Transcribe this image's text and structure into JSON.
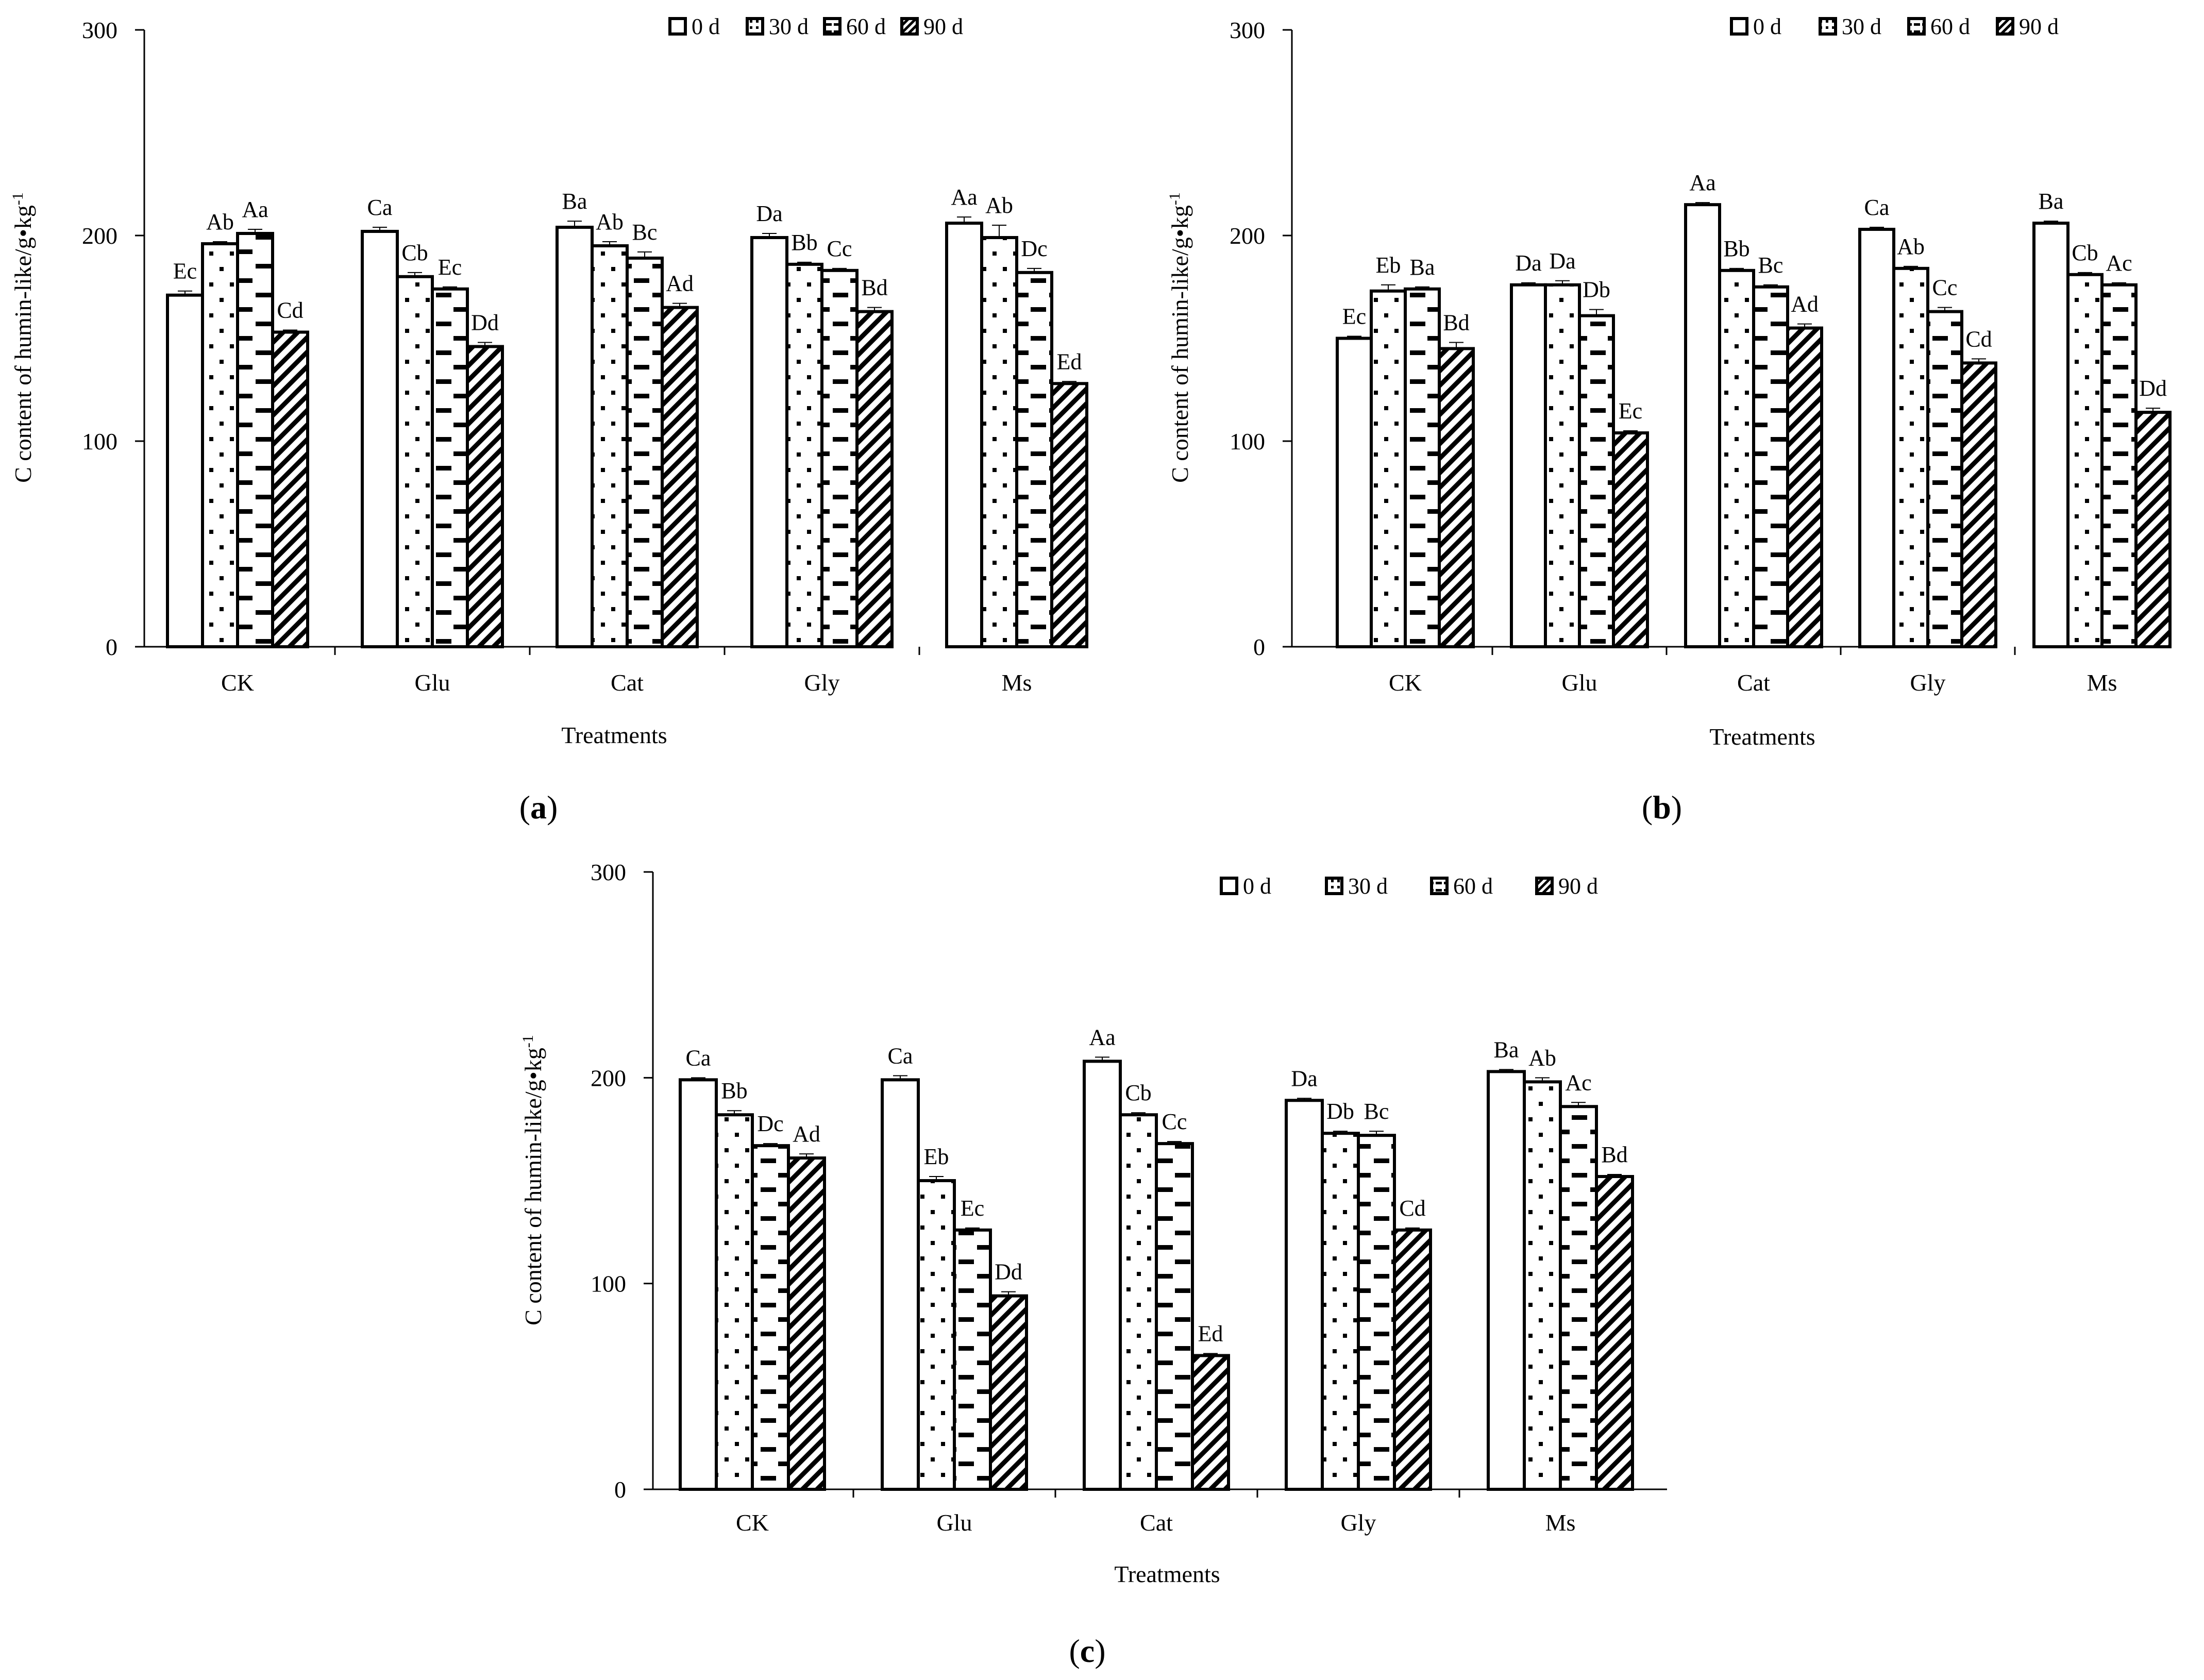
{
  "chart_data": [
    {
      "type": "bar",
      "panel_label": "a",
      "title": "",
      "xlabel": "Treatments",
      "ylabel": "C content of humin-like/g•kg",
      "ylabel_sup": "-1",
      "ylim": [
        0,
        300
      ],
      "yticks": [
        "0",
        "100",
        "200",
        "300"
      ],
      "grid": false,
      "legend_position": "top",
      "categories": [
        "CK",
        "Glu",
        "Cat",
        "Gly",
        "Ms"
      ],
      "series": [
        {
          "name": "0 d",
          "pattern": "white",
          "values": [
            171,
            202,
            204,
            199,
            206
          ],
          "errors": [
            2,
            2,
            3,
            2,
            3
          ],
          "labels": [
            "Ec",
            "Ca",
            "Ba",
            "Da",
            "Aa"
          ]
        },
        {
          "name": "30 d",
          "pattern": "dots",
          "values": [
            196,
            180,
            195,
            186,
            199
          ],
          "errors": [
            1,
            2,
            2,
            1,
            6
          ],
          "labels": [
            "Ab",
            "Cb",
            "Ab",
            "Bb",
            "Ab"
          ]
        },
        {
          "name": "60 d",
          "pattern": "dashes",
          "values": [
            201,
            174,
            189,
            183,
            182
          ],
          "errors": [
            2,
            1,
            3,
            1,
            2
          ],
          "labels": [
            "Aa",
            "Ec",
            "Bc",
            "Cc",
            "Dc"
          ]
        },
        {
          "name": "90 d",
          "pattern": "hatch",
          "values": [
            153,
            146,
            165,
            163,
            128
          ],
          "errors": [
            1,
            2,
            2,
            2,
            1
          ],
          "labels": [
            "Cd",
            "Dd",
            "Ad",
            "Bd",
            "Ed"
          ]
        }
      ]
    },
    {
      "type": "bar",
      "panel_label": "b",
      "title": "",
      "xlabel": "Treatments",
      "ylabel": "C content of humin-like/g•kg",
      "ylabel_sup": "-1",
      "ylim": [
        0,
        300
      ],
      "yticks": [
        "0",
        "100",
        "200",
        "300"
      ],
      "grid": false,
      "legend_position": "top",
      "categories": [
        "CK",
        "Glu",
        "Cat",
        "Gly",
        "Ms"
      ],
      "series": [
        {
          "name": "0 d",
          "pattern": "white",
          "values": [
            150,
            176,
            215,
            203,
            206
          ],
          "errors": [
            1,
            1,
            1,
            1,
            1
          ],
          "labels": [
            "Ec",
            "Da",
            "Aa",
            "Ca",
            "Ba"
          ]
        },
        {
          "name": "30 d",
          "pattern": "dots",
          "values": [
            173,
            176,
            183,
            184,
            181
          ],
          "errors": [
            3,
            2,
            1,
            1,
            1
          ],
          "labels": [
            "Eb",
            "Da",
            "Bb",
            "Ab",
            "Cb"
          ]
        },
        {
          "name": "60 d",
          "pattern": "dashes",
          "values": [
            174,
            161,
            175,
            163,
            176
          ],
          "errors": [
            1,
            3,
            1,
            2,
            1
          ],
          "labels": [
            "Ba",
            "Db",
            "Bc",
            "Cc",
            "Ac"
          ]
        },
        {
          "name": "90 d",
          "pattern": "hatch",
          "values": [
            145,
            104,
            155,
            138,
            114
          ],
          "errors": [
            3,
            1,
            2,
            2,
            2
          ],
          "labels": [
            "Bd",
            "Ec",
            "Ad",
            "Cd",
            "Dd"
          ]
        }
      ]
    },
    {
      "type": "bar",
      "panel_label": "c",
      "title": "",
      "xlabel": "Treatments",
      "ylabel": "C content of humin-like/g•kg",
      "ylabel_sup": "-1",
      "ylim": [
        0,
        300
      ],
      "yticks": [
        "0",
        "100",
        "200",
        "300"
      ],
      "grid": false,
      "legend_position": "top-right",
      "categories": [
        "CK",
        "Glu",
        "Cat",
        "Gly",
        "Ms"
      ],
      "series": [
        {
          "name": "0 d",
          "pattern": "white",
          "values": [
            199,
            199,
            208,
            189,
            203
          ],
          "errors": [
            1,
            2,
            2,
            1,
            1
          ],
          "labels": [
            "Ca",
            "Ca",
            "Aa",
            "Da",
            "Ba"
          ]
        },
        {
          "name": "30 d",
          "pattern": "dots",
          "values": [
            182,
            150,
            182,
            173,
            198
          ],
          "errors": [
            2,
            2,
            1,
            1,
            2
          ],
          "labels": [
            "Bb",
            "Eb",
            "Cb",
            "Db",
            "Ab"
          ]
        },
        {
          "name": "60 d",
          "pattern": "dashes",
          "values": [
            167,
            126,
            168,
            172,
            186
          ],
          "errors": [
            1,
            1,
            1,
            2,
            2
          ],
          "labels": [
            "Dc",
            "Ec",
            "Cc",
            "Bc",
            "Ac"
          ]
        },
        {
          "name": "90 d",
          "pattern": "hatch",
          "values": [
            161,
            94,
            65,
            126,
            152
          ],
          "errors": [
            2,
            2,
            1,
            1,
            1
          ],
          "labels": [
            "Ad",
            "Dd",
            "Ed",
            "Cd",
            "Bd"
          ]
        }
      ]
    }
  ]
}
